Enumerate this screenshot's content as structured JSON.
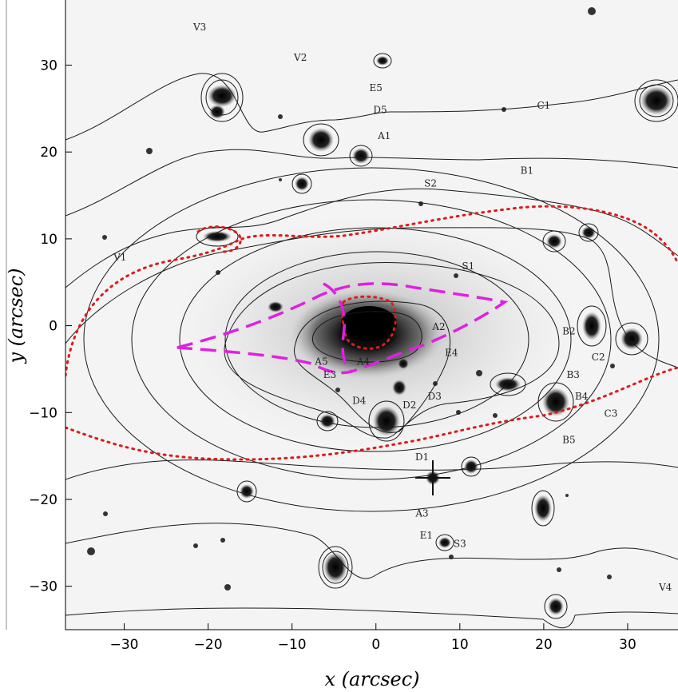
{
  "figure": {
    "x_axis_title": "x (arcsec)",
    "y_axis_title": "y (arcsec)",
    "x_ticks": [
      {
        "value": -30,
        "label": "−30"
      },
      {
        "value": -20,
        "label": "−20"
      },
      {
        "value": -10,
        "label": "−10"
      },
      {
        "value": 0,
        "label": "0"
      },
      {
        "value": 10,
        "label": "10"
      },
      {
        "value": 20,
        "label": "20"
      },
      {
        "value": 30,
        "label": "30"
      }
    ],
    "y_ticks": [
      {
        "value": 30,
        "label": "30"
      },
      {
        "value": 20,
        "label": "20"
      },
      {
        "value": 10,
        "label": "10"
      },
      {
        "value": 0,
        "label": "0"
      },
      {
        "value": -10,
        "label": "−10"
      },
      {
        "value": -20,
        "label": "−20"
      },
      {
        "value": -30,
        "label": "−30"
      }
    ],
    "x_range": [
      -37,
      36
    ],
    "y_range": [
      -35,
      37.5
    ],
    "colors": {
      "background": "#f4f4f4",
      "contour": "#1a1a1a",
      "critical_curve": "#e01a1a",
      "caustic": "#e020e0"
    },
    "labels": [
      {
        "text": "V3",
        "x": -21,
        "y": 34
      },
      {
        "text": "V2",
        "x": -9,
        "y": 30.5
      },
      {
        "text": "E5",
        "x": 0,
        "y": 27
      },
      {
        "text": "D5",
        "x": 0.5,
        "y": 24.5
      },
      {
        "text": "C1",
        "x": 20,
        "y": 25
      },
      {
        "text": "A1",
        "x": 1,
        "y": 21.5
      },
      {
        "text": "B1",
        "x": 18,
        "y": 17.5
      },
      {
        "text": "S2",
        "x": 6.5,
        "y": 16
      },
      {
        "text": "V1",
        "x": -30.5,
        "y": 7.5
      },
      {
        "text": "S1",
        "x": 11,
        "y": 6.5
      },
      {
        "text": "A2",
        "x": 7.5,
        "y": -0.5
      },
      {
        "text": "B2",
        "x": 23,
        "y": -1
      },
      {
        "text": "E4",
        "x": 9,
        "y": -3.5
      },
      {
        "text": "C2",
        "x": 26.5,
        "y": -4
      },
      {
        "text": "A5",
        "x": -6.5,
        "y": -4.5
      },
      {
        "text": "A4",
        "x": -1.5,
        "y": -4.5
      },
      {
        "text": "E3",
        "x": -5.5,
        "y": -6
      },
      {
        "text": "B3",
        "x": 23.5,
        "y": -6
      },
      {
        "text": "B4",
        "x": 24.5,
        "y": -8.5
      },
      {
        "text": "D4",
        "x": -2,
        "y": -9
      },
      {
        "text": "D2",
        "x": 4,
        "y": -9.5
      },
      {
        "text": "D3",
        "x": 7,
        "y": -8.5
      },
      {
        "text": "C3",
        "x": 28,
        "y": -10.5
      },
      {
        "text": "B5",
        "x": 23,
        "y": -13.5
      },
      {
        "text": "D1",
        "x": 5.5,
        "y": -15.5
      },
      {
        "text": "A3",
        "x": 5.5,
        "y": -22
      },
      {
        "text": "E1",
        "x": 6,
        "y": -24.5
      },
      {
        "text": "S3",
        "x": 10,
        "y": -25.5
      },
      {
        "text": "V4",
        "x": 34.5,
        "y": -30.5
      }
    ]
  }
}
